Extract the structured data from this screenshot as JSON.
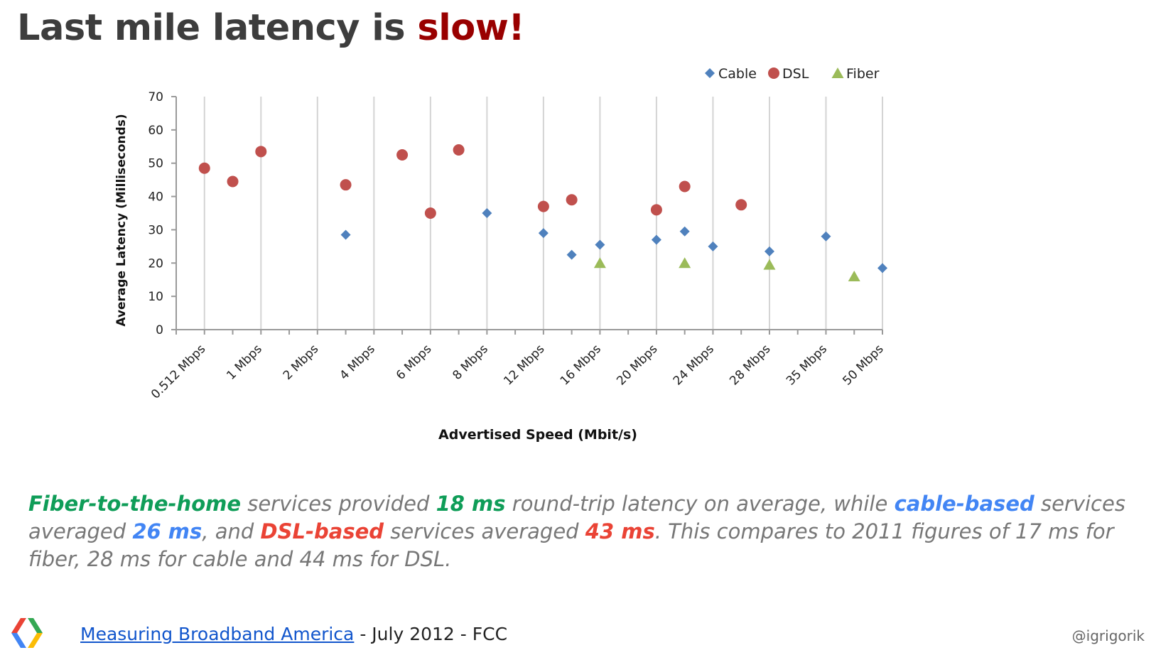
{
  "title": {
    "main": "Last mile latency is ",
    "accent": "slow!"
  },
  "colors": {
    "title_text": "#3d3d3d",
    "title_accent": "#990000",
    "cable": "#4f81bd",
    "dsl": "#c0504d",
    "fiber": "#9bbb59",
    "fiber_text": "#0f9d58",
    "cable_text": "#4285f4",
    "dsl_text": "#ea4335",
    "caption_text": "#777777",
    "link": "#1155cc"
  },
  "chart_data": {
    "type": "scatter",
    "xlabel": "Advertised Speed (Mbit/s)",
    "ylabel": "Average Latency (Milliseconds)",
    "ylim": [
      0,
      70
    ],
    "yticks": [
      0,
      10,
      20,
      30,
      40,
      50,
      60,
      70
    ],
    "categories": [
      "0.512 Mbps",
      "1 Mbps",
      "2 Mbps",
      "4 Mbps",
      "6 Mbps",
      "8 Mbps",
      "12 Mbps",
      "16 Mbps",
      "20 Mbps",
      "24 Mbps",
      "28 Mbps",
      "35 Mbps",
      "50 Mbps"
    ],
    "x_positions": 25,
    "grid": true,
    "legend_position": "top-right",
    "series": [
      {
        "name": "Cable",
        "marker": "diamond",
        "points": [
          [
            5,
            28.5
          ],
          [
            10,
            35
          ],
          [
            12,
            29
          ],
          [
            13,
            22.5
          ],
          [
            14,
            25.5
          ],
          [
            16,
            27
          ],
          [
            17,
            29.5
          ],
          [
            18,
            25
          ],
          [
            20,
            23.5
          ],
          [
            22,
            28
          ],
          [
            24,
            18.5
          ]
        ]
      },
      {
        "name": "DSL",
        "marker": "circle",
        "points": [
          [
            0,
            48.5
          ],
          [
            1,
            44.5
          ],
          [
            2,
            53.5
          ],
          [
            5,
            43.5
          ],
          [
            7,
            52.5
          ],
          [
            8,
            35
          ],
          [
            9,
            54
          ],
          [
            12,
            37
          ],
          [
            13,
            39
          ],
          [
            16,
            36
          ],
          [
            17,
            43
          ],
          [
            19,
            37.5
          ]
        ]
      },
      {
        "name": "Fiber",
        "marker": "triangle",
        "points": [
          [
            14,
            20
          ],
          [
            17,
            20
          ],
          [
            20,
            19.5
          ],
          [
            23,
            16
          ]
        ]
      }
    ]
  },
  "caption": {
    "s1": "Fiber-to-the-home",
    "s2": " services provided ",
    "s3": "18 ms",
    "s4": " round-trip latency on average, while ",
    "s5": "cable-based",
    "s6": " services averaged ",
    "s7": "26 ms",
    "s8": ", and ",
    "s9": "DSL-based",
    "s10": " services averaged ",
    "s11": "43 ms",
    "s12": ". This compares to 2011 figures of 17 ms for fiber, 28 ms for cable and 44 ms for DSL."
  },
  "footer": {
    "link_text": "Measuring Broadband America",
    "rest": " - July 2012 - FCC"
  },
  "handle": "@igrigorik"
}
